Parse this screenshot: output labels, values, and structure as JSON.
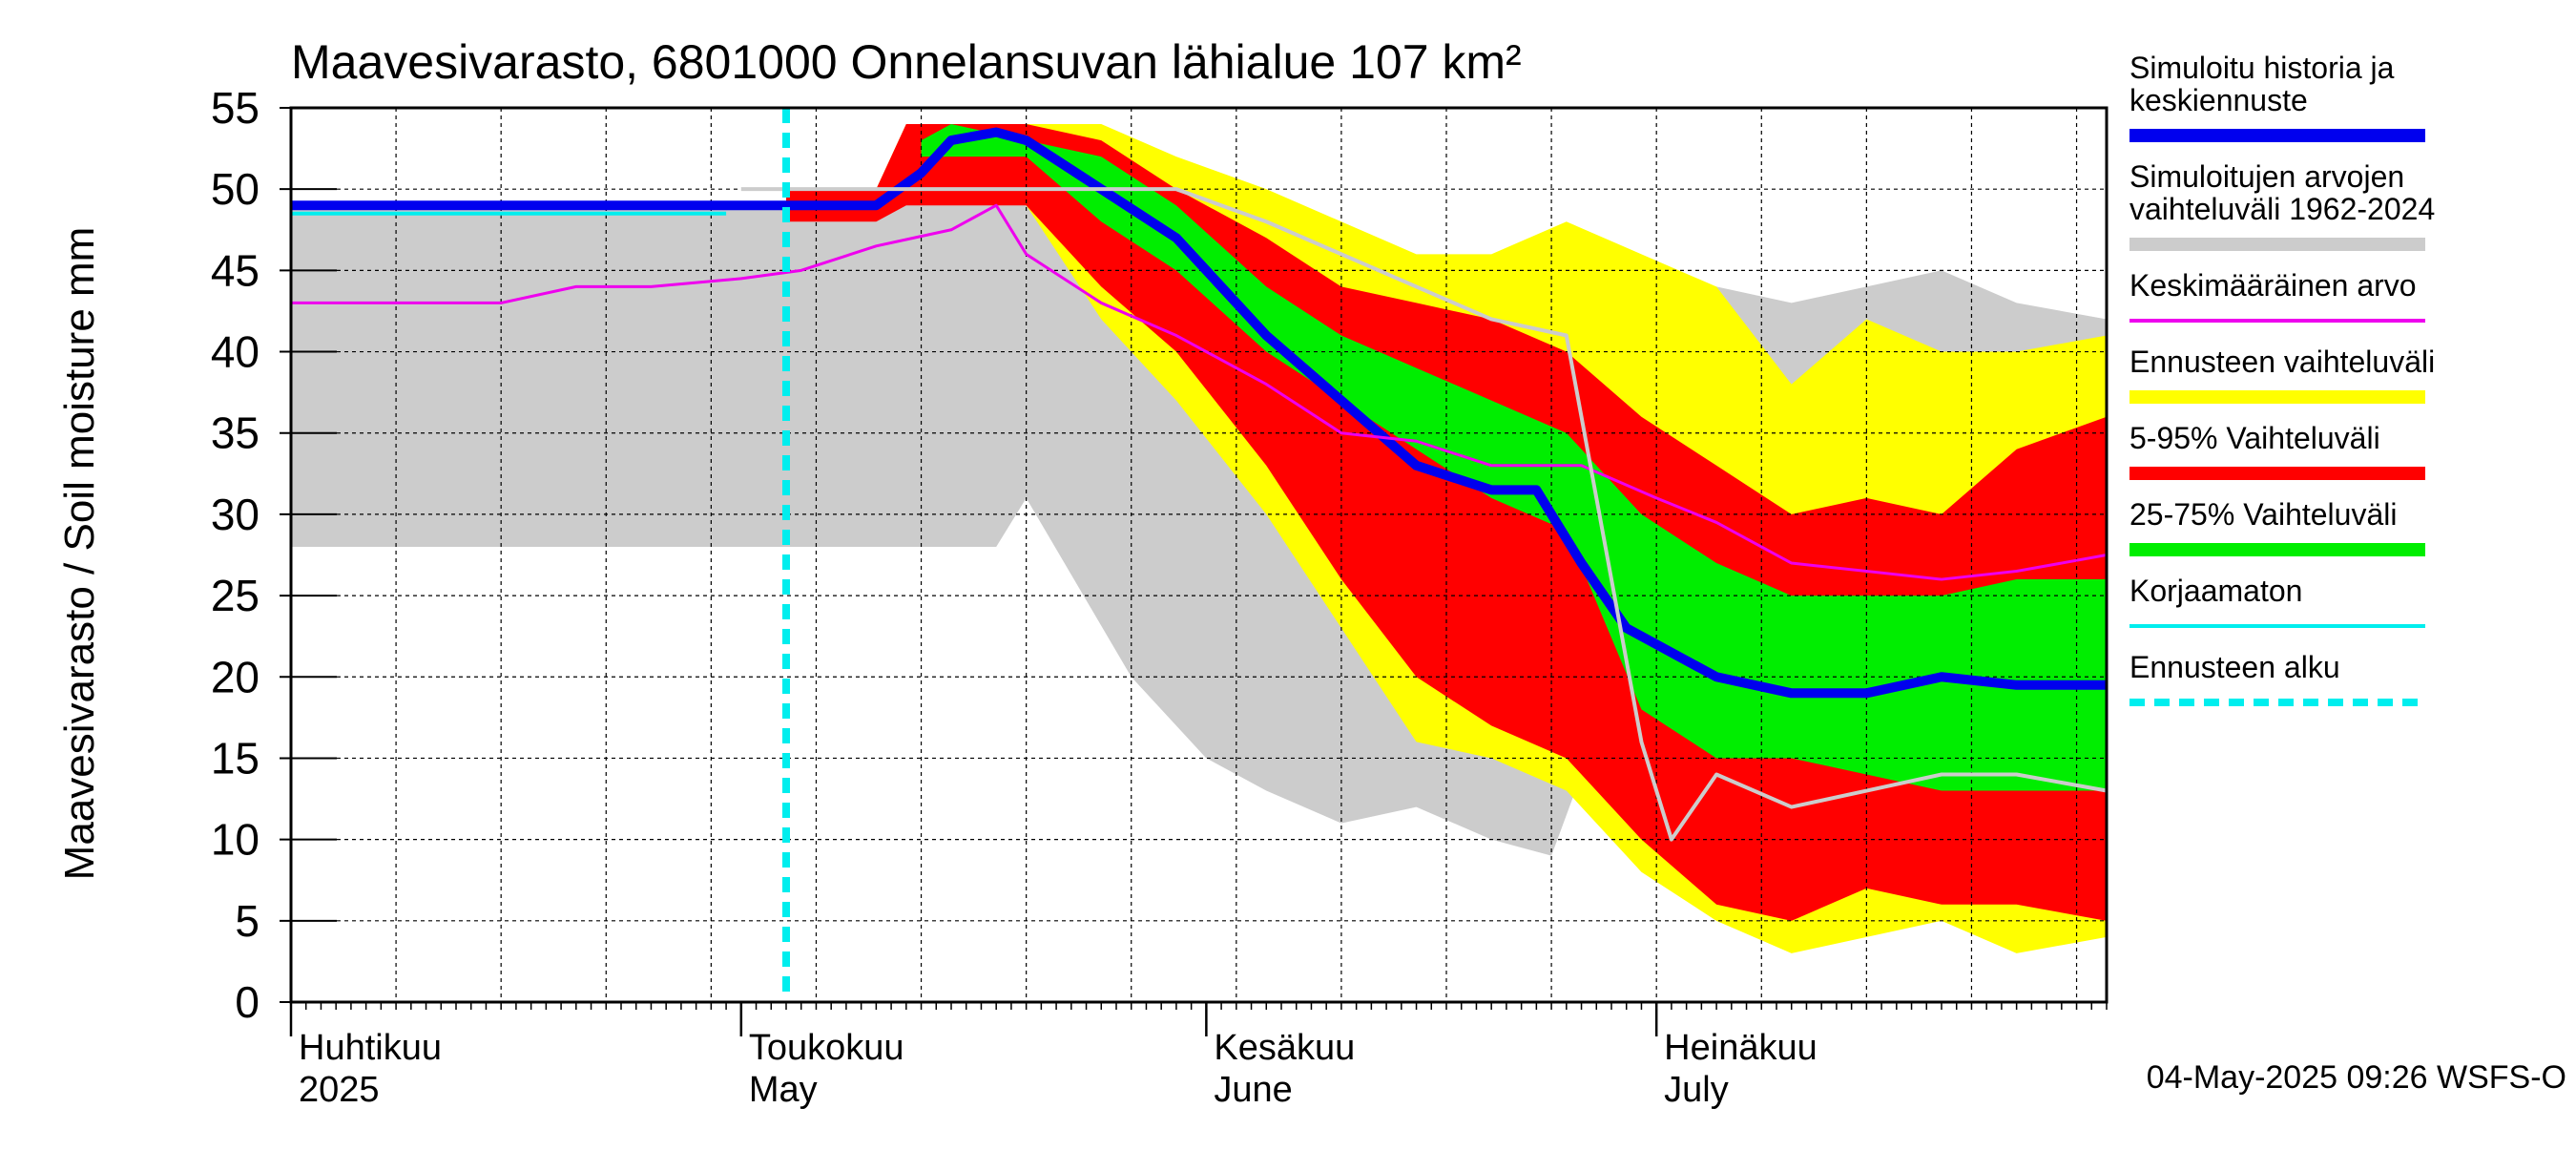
{
  "chart_data": {
    "type": "area",
    "title": "Maavesivarasto, 6801000 Onnelansuvan lähialue 107 km²",
    "ylabel": "Maavesivarasto / Soil moisture   mm",
    "ylim": [
      0,
      55
    ],
    "yticks": [
      0,
      5,
      10,
      15,
      20,
      25,
      30,
      35,
      40,
      45,
      50,
      55
    ],
    "xlim": [
      "2025-04-01",
      "2025-07-31"
    ],
    "x_month_labels": [
      {
        "date": "2025-04-01",
        "line1": "Huhtikuu",
        "line2": "2025"
      },
      {
        "date": "2025-05-01",
        "line1": "Toukokuu",
        "line2": "May"
      },
      {
        "date": "2025-06-01",
        "line1": "Kesäkuu",
        "line2": "June"
      },
      {
        "date": "2025-07-01",
        "line1": "Heinäkuu",
        "line2": "July"
      }
    ],
    "grid": true,
    "forecast_start": "2025-05-04",
    "legend_position": "right",
    "footer": "04-May-2025 09:26 WSFS-O",
    "legend": [
      {
        "label": "Simuloitu historia ja keskiennuste",
        "color": "#0000ee",
        "style": "thick"
      },
      {
        "label": "Simuloitujen arvojen vaihteluväli 1962-2024",
        "color": "#cccccc",
        "style": "band"
      },
      {
        "label": "Keskimääräinen arvo",
        "color": "#ee00ee",
        "style": "line"
      },
      {
        "label": "Ennusteen vaihteluväli",
        "color": "#ffff00",
        "style": "band"
      },
      {
        "label": "5-95% Vaihteluväli",
        "color": "#ff0000",
        "style": "band"
      },
      {
        "label": "25-75% Vaihteluväli",
        "color": "#00ee00",
        "style": "band"
      },
      {
        "label": "Korjaamaton",
        "color": "#00eeee",
        "style": "line"
      },
      {
        "label": "Ennusteen alku",
        "color": "#00eeee",
        "style": "dashed"
      }
    ],
    "series": [
      {
        "name": "Simuloitujen arvojen vaihteluväli 1962-2024",
        "kind": "band",
        "color": "#cccccc",
        "x": [
          "2025-04-01",
          "2025-05-01",
          "2025-05-18",
          "2025-05-20",
          "2025-05-27",
          "2025-06-01",
          "2025-06-05",
          "2025-06-10",
          "2025-06-15",
          "2025-06-20",
          "2025-06-24",
          "2025-06-26",
          "2025-06-30",
          "2025-07-05",
          "2025-07-10",
          "2025-07-15",
          "2025-07-20",
          "2025-07-25",
          "2025-07-31"
        ],
        "low": [
          28,
          28,
          28,
          31,
          20,
          15,
          13,
          11,
          12,
          10,
          9,
          14,
          17,
          18,
          18,
          18,
          18,
          18,
          18
        ],
        "high": [
          49,
          49,
          50,
          51,
          50,
          48,
          47,
          47,
          45,
          44,
          44,
          44,
          43,
          44,
          43,
          44,
          45,
          43,
          42
        ]
      },
      {
        "name": "Ennusteen vaihteluväli",
        "kind": "band",
        "color": "#ffff00",
        "x": [
          "2025-05-04",
          "2025-05-10",
          "2025-05-12",
          "2025-05-15",
          "2025-05-20",
          "2025-05-25",
          "2025-05-30",
          "2025-06-05",
          "2025-06-10",
          "2025-06-15",
          "2025-06-20",
          "2025-06-25",
          "2025-06-30",
          "2025-07-05",
          "2025-07-10",
          "2025-07-15",
          "2025-07-20",
          "2025-07-25",
          "2025-07-31"
        ],
        "low": [
          49,
          49,
          50,
          50,
          49,
          42,
          37,
          30,
          23,
          16,
          15,
          13,
          8,
          5,
          3,
          4,
          5,
          3,
          4
        ],
        "high": [
          50,
          50,
          54,
          54,
          54,
          54,
          52,
          50,
          48,
          46,
          46,
          48,
          46,
          44,
          38,
          42,
          40,
          40,
          41
        ]
      },
      {
        "name": "5-95% Vaihteluväli",
        "kind": "band",
        "color": "#ff0000",
        "x": [
          "2025-05-04",
          "2025-05-10",
          "2025-05-12",
          "2025-05-15",
          "2025-05-20",
          "2025-05-25",
          "2025-05-30",
          "2025-06-05",
          "2025-06-10",
          "2025-06-15",
          "2025-06-20",
          "2025-06-25",
          "2025-06-30",
          "2025-07-05",
          "2025-07-10",
          "2025-07-15",
          "2025-07-20",
          "2025-07-25",
          "2025-07-31"
        ],
        "low": [
          48,
          48,
          49,
          49,
          49,
          44,
          40,
          33,
          26,
          20,
          17,
          15,
          10,
          6,
          5,
          7,
          6,
          6,
          5
        ],
        "high": [
          50,
          50,
          54,
          54,
          54,
          53,
          50,
          47,
          44,
          43,
          42,
          40,
          36,
          33,
          30,
          31,
          30,
          34,
          36
        ]
      },
      {
        "name": "25-75% Vaihteluväli",
        "kind": "band",
        "color": "#00ee00",
        "x": [
          "2025-05-13",
          "2025-05-15",
          "2025-05-20",
          "2025-05-25",
          "2025-05-30",
          "2025-06-05",
          "2025-06-10",
          "2025-06-15",
          "2025-06-20",
          "2025-06-25",
          "2025-06-30",
          "2025-07-05",
          "2025-07-10",
          "2025-07-15",
          "2025-07-20",
          "2025-07-25",
          "2025-07-31"
        ],
        "low": [
          52,
          52,
          52,
          48,
          45,
          40,
          37,
          34,
          31,
          29,
          18,
          15,
          15,
          14,
          13,
          13,
          13
        ],
        "high": [
          53,
          54,
          53,
          52,
          49,
          44,
          41,
          39,
          37,
          35,
          30,
          27,
          25,
          25,
          25,
          26,
          26
        ]
      },
      {
        "name": "Simuloitu historia ja keskiennuste",
        "kind": "line",
        "color": "#0000ee",
        "width": 10,
        "x": [
          "2025-04-01",
          "2025-05-01",
          "2025-05-04",
          "2025-05-10",
          "2025-05-13",
          "2025-05-15",
          "2025-05-18",
          "2025-05-20",
          "2025-05-25",
          "2025-05-30",
          "2025-06-05",
          "2025-06-10",
          "2025-06-15",
          "2025-06-20",
          "2025-06-23",
          "2025-06-26",
          "2025-06-29",
          "2025-07-05",
          "2025-07-10",
          "2025-07-15",
          "2025-07-20",
          "2025-07-25",
          "2025-07-31"
        ],
        "y": [
          49,
          49,
          49,
          49,
          51,
          53,
          53.5,
          53,
          50,
          47,
          41,
          37,
          33,
          31.5,
          31.5,
          27,
          23,
          20,
          19,
          19,
          20,
          19.5,
          19.5
        ]
      },
      {
        "name": "Keskimääräinen arvo",
        "kind": "line",
        "color": "#ee00ee",
        "width": 3,
        "x": [
          "2025-04-01",
          "2025-04-15",
          "2025-04-20",
          "2025-04-25",
          "2025-05-01",
          "2025-05-05",
          "2025-05-10",
          "2025-05-15",
          "2025-05-18",
          "2025-05-20",
          "2025-05-25",
          "2025-05-30",
          "2025-06-05",
          "2025-06-10",
          "2025-06-15",
          "2025-06-20",
          "2025-06-26",
          "2025-07-01",
          "2025-07-05",
          "2025-07-10",
          "2025-07-15",
          "2025-07-20",
          "2025-07-25",
          "2025-07-31"
        ],
        "y": [
          43,
          43,
          44,
          44,
          44.5,
          45,
          46.5,
          47.5,
          49,
          46,
          43,
          41,
          38,
          35,
          34.5,
          33,
          33,
          31,
          29.5,
          27,
          26.5,
          26,
          26.5,
          27.5
        ]
      },
      {
        "name": "Korjaamaton",
        "kind": "line",
        "color": "#00eeee",
        "width": 4,
        "x": [
          "2025-04-01",
          "2025-04-30"
        ],
        "y": [
          48.5,
          48.5
        ]
      },
      {
        "name": "Simuloitujen arvojen vaihteluväli 1962-2024 (raja)",
        "kind": "line",
        "color": "#cccccc",
        "width": 4,
        "x": [
          "2025-05-01",
          "2025-05-20",
          "2025-05-30",
          "2025-06-05",
          "2025-06-10",
          "2025-06-15",
          "2025-06-20",
          "2025-06-25",
          "2025-06-30",
          "2025-07-02",
          "2025-07-05",
          "2025-07-10",
          "2025-07-15",
          "2025-07-20",
          "2025-07-25",
          "2025-07-31"
        ],
        "y": [
          50,
          50,
          50,
          48,
          46,
          44,
          42,
          41,
          16,
          10,
          14,
          12,
          13,
          14,
          14,
          13
        ]
      }
    ]
  }
}
